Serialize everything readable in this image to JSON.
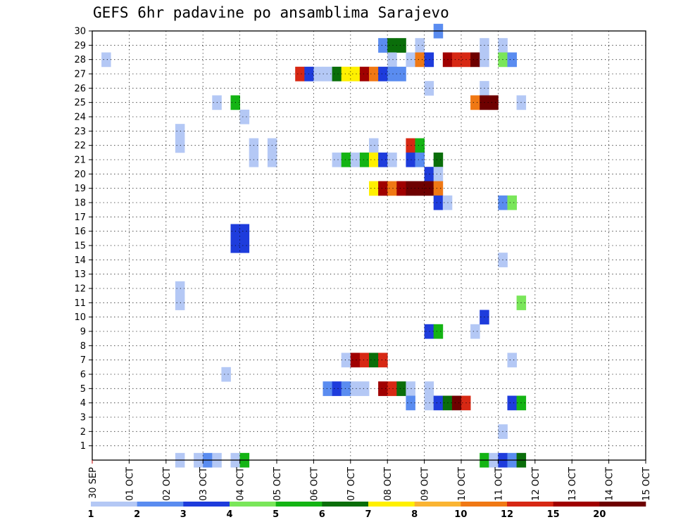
{
  "chart_data": {
    "type": "heatmap",
    "title": "GEFS 6hr padavine po ansamblima Sarajevo",
    "x_tick_labels": [
      "30 SEP",
      "01 OCT",
      "02 OCT",
      "03 OCT",
      "04 OCT",
      "05 OCT",
      "06 OCT",
      "07 OCT",
      "08 OCT",
      "09 OCT",
      "10 OCT",
      "11 OCT",
      "12 OCT",
      "13 OCT",
      "14 OCT",
      "15 OCT"
    ],
    "y_tick_labels": [
      "1",
      "2",
      "3",
      "4",
      "5",
      "6",
      "7",
      "8",
      "9",
      "10",
      "11",
      "12",
      "13",
      "14",
      "15",
      "16",
      "17",
      "18",
      "19",
      "20",
      "21",
      "22",
      "23",
      "24",
      "25",
      "26",
      "27",
      "28",
      "29",
      "30"
    ],
    "xlim": [
      0,
      60
    ],
    "ylim": [
      0,
      30
    ],
    "grid": true,
    "legend": {
      "position": "bottom",
      "labels": [
        "1",
        "2",
        "3",
        "4",
        "5",
        "6",
        "7",
        "8",
        "10",
        "12",
        "15",
        "20"
      ],
      "colors": [
        "#b4c8f5",
        "#5a8cf0",
        "#1e3cdc",
        "#7ae65a",
        "#14b414",
        "#0a6e0a",
        "#fff000",
        "#fab432",
        "#f07814",
        "#d72814",
        "#a00000",
        "#6e0000"
      ]
    },
    "cells": [
      [
        1,
        28,
        0
      ],
      [
        9,
        23,
        0
      ],
      [
        9,
        22,
        0
      ],
      [
        9,
        12,
        0
      ],
      [
        9,
        11,
        0
      ],
      [
        9,
        0,
        0
      ],
      [
        11,
        0,
        0
      ],
      [
        12,
        0,
        1
      ],
      [
        13,
        25,
        0
      ],
      [
        13,
        0,
        0
      ],
      [
        14,
        6,
        0
      ],
      [
        15,
        25,
        4
      ],
      [
        15,
        16,
        2
      ],
      [
        15,
        15,
        2
      ],
      [
        15,
        0,
        0
      ],
      [
        16,
        24,
        0
      ],
      [
        16,
        16,
        2
      ],
      [
        16,
        15,
        2
      ],
      [
        16,
        0,
        4
      ],
      [
        17,
        22,
        0
      ],
      [
        17,
        21,
        0
      ],
      [
        19,
        22,
        0
      ],
      [
        19,
        21,
        0
      ],
      [
        22,
        27,
        9
      ],
      [
        23,
        27,
        2
      ],
      [
        24,
        27,
        0
      ],
      [
        25,
        27,
        0
      ],
      [
        25,
        5,
        1
      ],
      [
        26,
        27,
        5
      ],
      [
        26,
        21,
        0
      ],
      [
        26,
        5,
        2
      ],
      [
        27,
        27,
        6
      ],
      [
        27,
        21,
        4
      ],
      [
        27,
        7,
        0
      ],
      [
        27,
        5,
        1
      ],
      [
        28,
        27,
        6
      ],
      [
        28,
        21,
        0
      ],
      [
        28,
        7,
        10
      ],
      [
        28,
        5,
        0
      ],
      [
        29,
        27,
        10
      ],
      [
        29,
        21,
        4
      ],
      [
        29,
        7,
        9
      ],
      [
        29,
        5,
        0
      ],
      [
        30,
        27,
        8
      ],
      [
        30,
        22,
        0
      ],
      [
        30,
        21,
        6
      ],
      [
        30,
        19,
        6
      ],
      [
        30,
        7,
        5
      ],
      [
        31,
        29,
        1
      ],
      [
        31,
        27,
        2
      ],
      [
        31,
        21,
        2
      ],
      [
        31,
        19,
        10
      ],
      [
        31,
        7,
        9
      ],
      [
        31,
        5,
        10
      ],
      [
        32,
        29,
        5
      ],
      [
        32,
        28,
        0
      ],
      [
        32,
        27,
        1
      ],
      [
        32,
        21,
        0
      ],
      [
        32,
        19,
        8
      ],
      [
        32,
        5,
        9
      ],
      [
        33,
        29,
        5
      ],
      [
        33,
        27,
        1
      ],
      [
        33,
        19,
        10
      ],
      [
        33,
        5,
        5
      ],
      [
        34,
        28,
        0
      ],
      [
        34,
        22,
        9
      ],
      [
        34,
        21,
        2
      ],
      [
        34,
        19,
        11
      ],
      [
        34,
        5,
        0
      ],
      [
        34,
        4,
        1
      ],
      [
        35,
        29,
        0
      ],
      [
        35,
        28,
        8
      ],
      [
        35,
        22,
        4
      ],
      [
        35,
        21,
        1
      ],
      [
        35,
        19,
        11
      ],
      [
        36,
        28,
        2
      ],
      [
        36,
        26,
        0
      ],
      [
        36,
        20,
        2
      ],
      [
        36,
        19,
        11
      ],
      [
        36,
        9,
        2
      ],
      [
        36,
        5,
        0
      ],
      [
        36,
        4,
        0
      ],
      [
        37,
        30,
        1
      ],
      [
        37,
        21,
        5
      ],
      [
        37,
        20,
        0
      ],
      [
        37,
        19,
        8
      ],
      [
        37,
        18,
        2
      ],
      [
        37,
        9,
        4
      ],
      [
        37,
        4,
        2
      ],
      [
        38,
        28,
        10
      ],
      [
        38,
        18,
        0
      ],
      [
        38,
        4,
        5
      ],
      [
        39,
        28,
        9
      ],
      [
        39,
        4,
        11
      ],
      [
        40,
        28,
        9
      ],
      [
        40,
        4,
        9
      ],
      [
        41,
        28,
        11
      ],
      [
        41,
        25,
        8
      ],
      [
        41,
        9,
        0
      ],
      [
        42,
        29,
        0
      ],
      [
        42,
        28,
        0
      ],
      [
        42,
        26,
        0
      ],
      [
        42,
        25,
        11
      ],
      [
        42,
        10,
        2
      ],
      [
        42,
        0,
        4
      ],
      [
        43,
        25,
        11
      ],
      [
        43,
        0,
        0
      ],
      [
        44,
        29,
        0
      ],
      [
        44,
        28,
        3
      ],
      [
        44,
        18,
        1
      ],
      [
        44,
        14,
        0
      ],
      [
        44,
        2,
        0
      ],
      [
        44,
        0,
        2
      ],
      [
        45,
        28,
        1
      ],
      [
        45,
        18,
        3
      ],
      [
        45,
        7,
        0
      ],
      [
        45,
        4,
        2
      ],
      [
        45,
        0,
        1
      ],
      [
        46,
        25,
        0
      ],
      [
        46,
        11,
        3
      ],
      [
        46,
        4,
        4
      ],
      [
        46,
        0,
        5
      ]
    ]
  }
}
